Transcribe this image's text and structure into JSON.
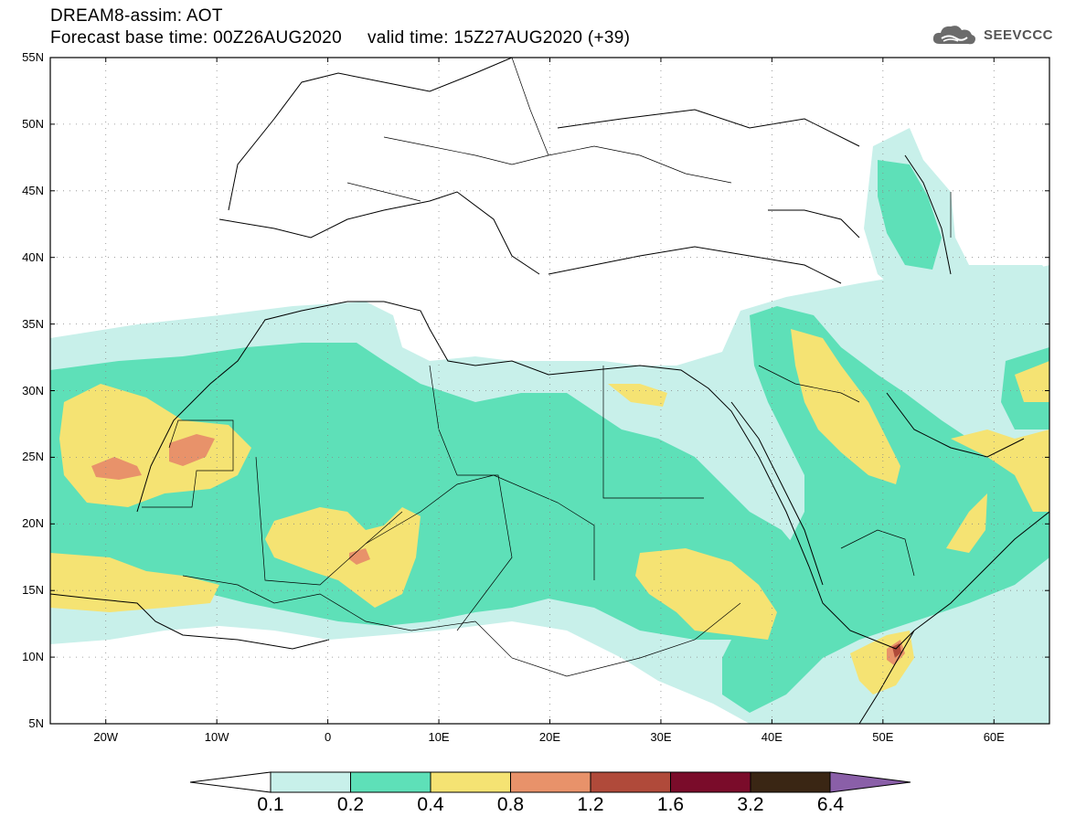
{
  "header": {
    "title": "DREAM8-assim: AOT",
    "base_time_label": "Forecast base time: 00Z26AUG2020",
    "valid_time_label": "valid time: 15Z27AUG2020 (+39)"
  },
  "logo": {
    "text": "SEEVCCC",
    "icon": "cloud-icon"
  },
  "map": {
    "lon_range": [
      -25,
      65
    ],
    "lat_range": [
      5,
      55
    ],
    "lat_labels": [
      "55N",
      "50N",
      "45N",
      "40N",
      "35N",
      "30N",
      "25N",
      "20N",
      "15N",
      "10N",
      "5N"
    ],
    "lon_labels": [
      "20W",
      "10W",
      "0",
      "10E",
      "20E",
      "30E",
      "40E",
      "50E",
      "60E"
    ],
    "grid": "dotted"
  },
  "colorbar": {
    "levels": [
      "0.1",
      "0.2",
      "0.4",
      "0.8",
      "1.2",
      "1.6",
      "3.2",
      "6.4"
    ],
    "colors": [
      "#c8f0ea",
      "#5ee0b8",
      "#f5e373",
      "#e8926a",
      "#b04a3a",
      "#7a0c2a",
      "#3a2614",
      "#8a5fa8"
    ]
  }
}
